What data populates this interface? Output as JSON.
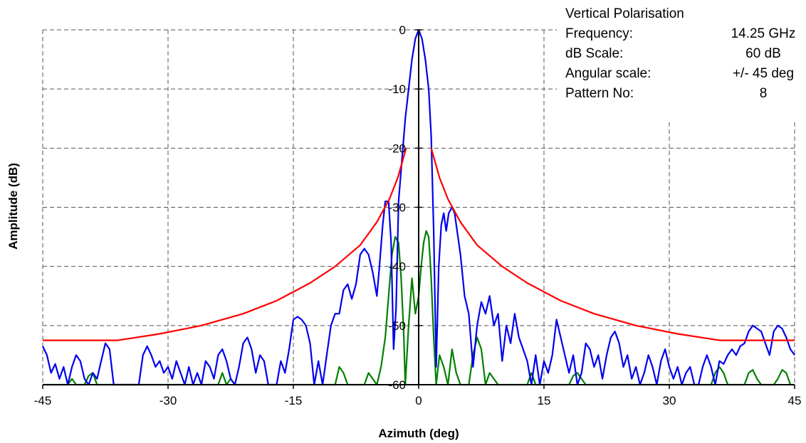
{
  "chart_data": {
    "type": "line",
    "xlabel": "Azimuth (deg)",
    "ylabel": "Amplitude (dB)",
    "xlim": [
      -45,
      45
    ],
    "ylim": [
      -60,
      0
    ],
    "x_ticks": [
      -45,
      -30,
      -15,
      0,
      15,
      30,
      45
    ],
    "y_ticks": [
      0,
      -10,
      -20,
      -30,
      -40,
      -50,
      -60
    ],
    "grid": true,
    "info": [
      {
        "label": "Vertical Polarisation",
        "value": ""
      },
      {
        "label": "Frequency:",
        "value": "14.25 GHz"
      },
      {
        "label": "dB Scale:",
        "value": "60 dB"
      },
      {
        "label": "Angular scale:",
        "value": "+/- 45 deg"
      },
      {
        "label": "Pattern No:",
        "value": "8"
      }
    ],
    "colors": {
      "copolar": "#0000ee",
      "crosspolar": "#008000",
      "mask": "#ff0000"
    },
    "series": [
      {
        "values_desc": "co-polar",
        "points": [
          [
            -45,
            -53.5
          ],
          [
            -44.5,
            -55
          ],
          [
            -44,
            -58
          ],
          [
            -43.5,
            -56.5
          ],
          [
            -43,
            -59
          ],
          [
            -42.5,
            -57
          ],
          [
            -42,
            -60
          ],
          [
            -41.5,
            -57
          ],
          [
            -41,
            -55
          ],
          [
            -40.5,
            -56
          ],
          [
            -40,
            -59
          ],
          [
            -39.5,
            -60
          ],
          [
            -39,
            -58
          ],
          [
            -38.5,
            -59
          ],
          [
            -38,
            -56
          ],
          [
            -37.5,
            -53
          ],
          [
            -37,
            -54
          ],
          [
            -36.5,
            -60
          ],
          [
            -35,
            -60
          ],
          [
            -33.5,
            -60
          ],
          [
            -33,
            -55
          ],
          [
            -32.5,
            -53.5
          ],
          [
            -32,
            -55
          ],
          [
            -31.5,
            -57
          ],
          [
            -31,
            -56
          ],
          [
            -30.5,
            -58
          ],
          [
            -30,
            -57
          ],
          [
            -29.5,
            -59
          ],
          [
            -29,
            -56
          ],
          [
            -28.5,
            -58
          ],
          [
            -28,
            -60
          ],
          [
            -27.5,
            -57
          ],
          [
            -27,
            -60
          ],
          [
            -26.5,
            -58
          ],
          [
            -26,
            -60
          ],
          [
            -25.5,
            -56
          ],
          [
            -25,
            -57
          ],
          [
            -24.5,
            -59
          ],
          [
            -24,
            -55
          ],
          [
            -23.5,
            -54
          ],
          [
            -23,
            -56
          ],
          [
            -22.5,
            -59
          ],
          [
            -22,
            -60
          ],
          [
            -21.5,
            -57
          ],
          [
            -21,
            -53
          ],
          [
            -20.5,
            -52
          ],
          [
            -20,
            -54
          ],
          [
            -19.5,
            -58
          ],
          [
            -19,
            -55
          ],
          [
            -18.5,
            -56
          ],
          [
            -18,
            -60
          ],
          [
            -17,
            -60
          ],
          [
            -16.5,
            -56
          ],
          [
            -16,
            -58
          ],
          [
            -15.5,
            -54
          ],
          [
            -15,
            -49
          ],
          [
            -14.5,
            -48.5
          ],
          [
            -14,
            -49
          ],
          [
            -13.5,
            -50
          ],
          [
            -13,
            -53
          ],
          [
            -12.5,
            -60
          ],
          [
            -12,
            -56
          ],
          [
            -11.5,
            -60
          ],
          [
            -11,
            -55
          ],
          [
            -10.5,
            -50
          ],
          [
            -10,
            -48
          ],
          [
            -9.5,
            -48
          ],
          [
            -9,
            -44
          ],
          [
            -8.5,
            -43
          ],
          [
            -8,
            -45.5
          ],
          [
            -7.5,
            -43
          ],
          [
            -7,
            -38
          ],
          [
            -6.5,
            -37
          ],
          [
            -6,
            -38
          ],
          [
            -5.5,
            -41
          ],
          [
            -5,
            -45
          ],
          [
            -4.7,
            -40
          ],
          [
            -4.3,
            -33
          ],
          [
            -4,
            -29
          ],
          [
            -3.6,
            -29
          ],
          [
            -3.3,
            -36
          ],
          [
            -3,
            -54
          ],
          [
            -2.7,
            -47
          ],
          [
            -2.4,
            -29
          ],
          [
            -2,
            -22
          ],
          [
            -1.6,
            -15
          ],
          [
            -1.2,
            -10
          ],
          [
            -0.8,
            -5
          ],
          [
            -0.4,
            -1.5
          ],
          [
            0,
            0
          ],
          [
            0.4,
            -1.5
          ],
          [
            0.8,
            -5
          ],
          [
            1.2,
            -10
          ],
          [
            1.5,
            -18
          ],
          [
            1.8,
            -34
          ],
          [
            2.1,
            -57
          ],
          [
            2.4,
            -40
          ],
          [
            2.7,
            -33
          ],
          [
            3,
            -31
          ],
          [
            3.3,
            -34
          ],
          [
            3.6,
            -31
          ],
          [
            4,
            -30
          ],
          [
            4.3,
            -31
          ],
          [
            4.6,
            -34
          ],
          [
            5,
            -38
          ],
          [
            5.5,
            -45
          ],
          [
            6,
            -48
          ],
          [
            6.5,
            -57
          ],
          [
            7,
            -50
          ],
          [
            7.5,
            -46
          ],
          [
            8,
            -48
          ],
          [
            8.5,
            -45
          ],
          [
            9,
            -50
          ],
          [
            9.5,
            -48
          ],
          [
            10,
            -56
          ],
          [
            10.5,
            -50
          ],
          [
            11,
            -53
          ],
          [
            11.5,
            -48
          ],
          [
            12,
            -52
          ],
          [
            12.5,
            -54
          ],
          [
            13,
            -56
          ],
          [
            13.5,
            -60
          ],
          [
            14,
            -55
          ],
          [
            14.5,
            -60
          ],
          [
            15,
            -56
          ],
          [
            15.5,
            -58
          ],
          [
            16,
            -55
          ],
          [
            16.5,
            -49
          ],
          [
            17,
            -52
          ],
          [
            17.5,
            -55
          ],
          [
            18,
            -58
          ],
          [
            18.5,
            -55
          ],
          [
            19,
            -60
          ],
          [
            19.5,
            -58
          ],
          [
            20,
            -53
          ],
          [
            20.5,
            -54
          ],
          [
            21,
            -57
          ],
          [
            21.5,
            -55
          ],
          [
            22,
            -59
          ],
          [
            22.5,
            -55
          ],
          [
            23,
            -52
          ],
          [
            23.5,
            -51
          ],
          [
            24,
            -53
          ],
          [
            24.5,
            -57
          ],
          [
            25,
            -55
          ],
          [
            25.5,
            -59
          ],
          [
            26,
            -57
          ],
          [
            26.5,
            -60
          ],
          [
            27,
            -58
          ],
          [
            27.5,
            -55
          ],
          [
            28,
            -57
          ],
          [
            28.5,
            -60
          ],
          [
            29,
            -56
          ],
          [
            29.5,
            -54
          ],
          [
            30,
            -57
          ],
          [
            30.5,
            -59
          ],
          [
            31,
            -57
          ],
          [
            31.5,
            -60
          ],
          [
            32,
            -58
          ],
          [
            32.5,
            -57
          ],
          [
            33,
            -60
          ],
          [
            33.5,
            -60
          ],
          [
            34,
            -57
          ],
          [
            34.5,
            -55
          ],
          [
            35,
            -57
          ],
          [
            35.5,
            -60
          ],
          [
            36,
            -56
          ],
          [
            36.5,
            -56.5
          ],
          [
            37,
            -55
          ],
          [
            37.5,
            -54
          ],
          [
            38,
            -55
          ],
          [
            38.5,
            -53.5
          ],
          [
            39,
            -53
          ],
          [
            39.5,
            -51
          ],
          [
            40,
            -50
          ],
          [
            40.5,
            -50.5
          ],
          [
            41,
            -51
          ],
          [
            41.5,
            -53
          ],
          [
            42,
            -55
          ],
          [
            42.5,
            -51
          ],
          [
            43,
            -50
          ],
          [
            43.5,
            -50.5
          ],
          [
            44,
            -52
          ],
          [
            44.5,
            -54
          ],
          [
            45,
            -55
          ]
        ]
      },
      {
        "values_desc": "cross-polar",
        "points": [
          [
            -45,
            -60
          ],
          [
            -42,
            -60
          ],
          [
            -41.5,
            -59
          ],
          [
            -41,
            -60
          ],
          [
            -40,
            -60
          ],
          [
            -39.5,
            -58.5
          ],
          [
            -39,
            -58
          ],
          [
            -38.5,
            -60
          ],
          [
            -24,
            -60
          ],
          [
            -23.5,
            -58
          ],
          [
            -23,
            -60
          ],
          [
            -22.5,
            -59
          ],
          [
            -22,
            -60
          ],
          [
            -15,
            -60
          ],
          [
            -10,
            -60
          ],
          [
            -9.5,
            -57
          ],
          [
            -9,
            -58
          ],
          [
            -8.5,
            -60
          ],
          [
            -6.5,
            -60
          ],
          [
            -6,
            -58
          ],
          [
            -5.5,
            -59
          ],
          [
            -5,
            -60
          ],
          [
            -4.5,
            -57
          ],
          [
            -4,
            -52
          ],
          [
            -3.6,
            -45
          ],
          [
            -3.2,
            -38
          ],
          [
            -2.8,
            -35
          ],
          [
            -2.4,
            -36
          ],
          [
            -2.1,
            -42
          ],
          [
            -1.8,
            -51
          ],
          [
            -1.6,
            -60
          ],
          [
            -1.2,
            -50
          ],
          [
            -0.8,
            -42
          ],
          [
            -0.4,
            -48
          ],
          [
            0,
            -45
          ],
          [
            0.3,
            -40
          ],
          [
            0.6,
            -36
          ],
          [
            0.9,
            -34
          ],
          [
            1.2,
            -35
          ],
          [
            1.5,
            -42
          ],
          [
            1.8,
            -52
          ],
          [
            2.1,
            -60
          ],
          [
            2.5,
            -55
          ],
          [
            3,
            -57
          ],
          [
            3.5,
            -60
          ],
          [
            4,
            -54
          ],
          [
            4.5,
            -58
          ],
          [
            5,
            -60
          ],
          [
            6,
            -60
          ],
          [
            6.5,
            -55
          ],
          [
            7,
            -52
          ],
          [
            7.5,
            -54
          ],
          [
            8,
            -60
          ],
          [
            8.5,
            -58
          ],
          [
            9,
            -59
          ],
          [
            9.5,
            -60
          ],
          [
            13,
            -60
          ],
          [
            13.5,
            -58
          ],
          [
            14,
            -60
          ],
          [
            18,
            -60
          ],
          [
            18.5,
            -58.5
          ],
          [
            19,
            -58
          ],
          [
            19.5,
            -59
          ],
          [
            20,
            -60
          ],
          [
            35,
            -60
          ],
          [
            35.5,
            -58
          ],
          [
            36,
            -57
          ],
          [
            36.5,
            -58
          ],
          [
            37,
            -60
          ],
          [
            39,
            -60
          ],
          [
            39.5,
            -58
          ],
          [
            40,
            -57.5
          ],
          [
            40.5,
            -59
          ],
          [
            41,
            -60
          ],
          [
            42.5,
            -60
          ],
          [
            43,
            -59
          ],
          [
            43.5,
            -57.5
          ],
          [
            44,
            -58
          ],
          [
            44.5,
            -60
          ],
          [
            45,
            -60
          ]
        ]
      },
      {
        "values_desc": "mask-left",
        "points": [
          [
            -45,
            -52.5
          ],
          [
            -36,
            -52.5
          ],
          [
            -31,
            -51.4
          ],
          [
            -26,
            -50
          ],
          [
            -21,
            -48
          ],
          [
            -17,
            -45.8
          ],
          [
            -13,
            -42.8
          ],
          [
            -10,
            -40
          ],
          [
            -7,
            -36.4
          ],
          [
            -5,
            -32.5
          ],
          [
            -3.5,
            -28.6
          ],
          [
            -2.5,
            -25
          ],
          [
            -1.8,
            -21.5
          ],
          [
            -1.5,
            -20
          ]
        ]
      },
      {
        "values_desc": "mask-right",
        "points": [
          [
            1.5,
            -20
          ],
          [
            1.8,
            -21.5
          ],
          [
            2.5,
            -25
          ],
          [
            3.5,
            -28.6
          ],
          [
            5,
            -32.5
          ],
          [
            7,
            -36.4
          ],
          [
            10,
            -40
          ],
          [
            13,
            -42.8
          ],
          [
            17,
            -45.8
          ],
          [
            21,
            -48
          ],
          [
            26,
            -50
          ],
          [
            31,
            -51.4
          ],
          [
            36,
            -52.5
          ],
          [
            45,
            -52.5
          ]
        ]
      }
    ]
  }
}
